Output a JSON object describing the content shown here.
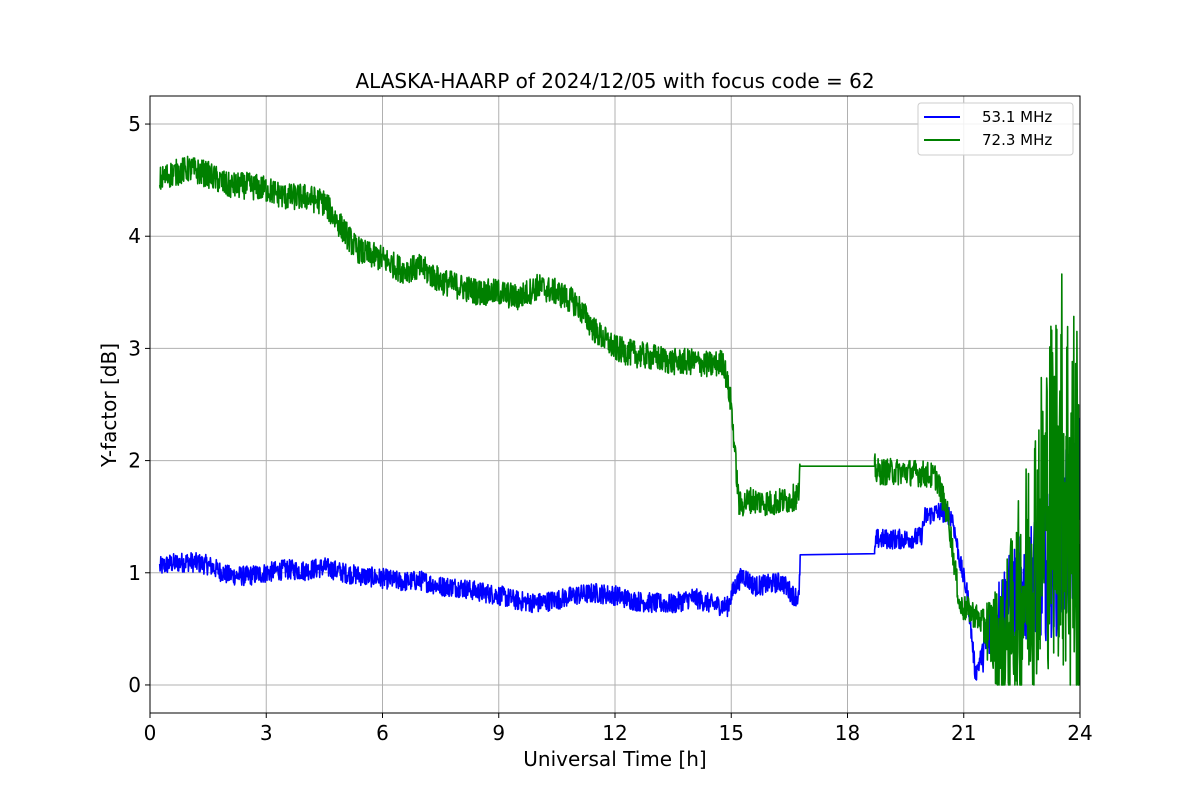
{
  "chart_data": {
    "type": "line",
    "title": "ALASKA-HAARP of 2024/12/05 with focus code = 62",
    "xlabel": "Universal Time [h]",
    "ylabel": "Y-factor [dB]",
    "xlim": [
      0,
      24
    ],
    "ylim": [
      -0.25,
      5.25
    ],
    "xticks": [
      0,
      3,
      6,
      9,
      12,
      15,
      18,
      21,
      24
    ],
    "yticks": [
      0,
      1,
      2,
      3,
      4,
      5
    ],
    "grid": true,
    "legend_position": "top-right",
    "series": [
      {
        "name": "53.1 MHz",
        "color": "#0000ff",
        "points": [
          [
            0.25,
            1.05
          ],
          [
            0.5,
            1.08
          ],
          [
            1.0,
            1.1
          ],
          [
            1.5,
            1.07
          ],
          [
            2.0,
            0.98
          ],
          [
            2.5,
            0.97
          ],
          [
            3.0,
            1.0
          ],
          [
            3.5,
            1.03
          ],
          [
            4.0,
            1.02
          ],
          [
            4.5,
            1.05
          ],
          [
            5.0,
            1.0
          ],
          [
            5.5,
            0.97
          ],
          [
            6.0,
            0.95
          ],
          [
            6.5,
            0.92
          ],
          [
            7.0,
            0.93
          ],
          [
            7.5,
            0.88
          ],
          [
            8.0,
            0.87
          ],
          [
            8.5,
            0.83
          ],
          [
            9.0,
            0.8
          ],
          [
            9.5,
            0.75
          ],
          [
            10.0,
            0.73
          ],
          [
            10.5,
            0.76
          ],
          [
            11.0,
            0.8
          ],
          [
            11.5,
            0.82
          ],
          [
            12.0,
            0.8
          ],
          [
            12.5,
            0.75
          ],
          [
            13.0,
            0.73
          ],
          [
            13.5,
            0.72
          ],
          [
            14.0,
            0.78
          ],
          [
            14.5,
            0.72
          ],
          [
            14.9,
            0.7
          ],
          [
            15.1,
            0.88
          ],
          [
            15.3,
            0.98
          ],
          [
            15.6,
            0.88
          ],
          [
            16.0,
            0.9
          ],
          [
            16.3,
            0.92
          ],
          [
            16.6,
            0.8
          ],
          [
            16.75,
            0.78
          ],
          [
            16.78,
            1.16
          ],
          [
            18.7,
            1.17
          ],
          [
            18.75,
            1.3
          ],
          [
            19.5,
            1.3
          ],
          [
            19.9,
            1.32
          ],
          [
            20.0,
            1.5
          ],
          [
            20.4,
            1.55
          ],
          [
            20.7,
            1.5
          ],
          [
            20.9,
            1.1
          ],
          [
            21.1,
            0.8
          ],
          [
            21.3,
            0.1
          ],
          [
            21.6,
            0.4
          ],
          [
            22.0,
            0.7
          ],
          [
            22.5,
            0.85
          ],
          [
            23.0,
            1.0
          ],
          [
            23.5,
            1.2
          ],
          [
            24.0,
            1.6
          ]
        ],
        "noise": 0.09
      },
      {
        "name": "72.3 MHz",
        "color": "#008000",
        "points": [
          [
            0.25,
            4.5
          ],
          [
            0.5,
            4.55
          ],
          [
            1.0,
            4.6
          ],
          [
            1.5,
            4.55
          ],
          [
            2.0,
            4.45
          ],
          [
            2.5,
            4.45
          ],
          [
            3.0,
            4.42
          ],
          [
            3.5,
            4.35
          ],
          [
            4.0,
            4.35
          ],
          [
            4.5,
            4.3
          ],
          [
            5.0,
            4.05
          ],
          [
            5.3,
            3.9
          ],
          [
            5.5,
            3.85
          ],
          [
            6.0,
            3.8
          ],
          [
            6.5,
            3.7
          ],
          [
            7.0,
            3.72
          ],
          [
            7.5,
            3.6
          ],
          [
            8.0,
            3.55
          ],
          [
            8.5,
            3.5
          ],
          [
            9.0,
            3.5
          ],
          [
            9.5,
            3.45
          ],
          [
            10.0,
            3.55
          ],
          [
            10.5,
            3.5
          ],
          [
            11.0,
            3.4
          ],
          [
            11.5,
            3.15
          ],
          [
            12.0,
            3.0
          ],
          [
            12.5,
            2.95
          ],
          [
            13.0,
            2.92
          ],
          [
            13.5,
            2.88
          ],
          [
            14.0,
            2.88
          ],
          [
            14.5,
            2.85
          ],
          [
            14.8,
            2.88
          ],
          [
            15.0,
            2.5
          ],
          [
            15.2,
            1.6
          ],
          [
            15.5,
            1.65
          ],
          [
            16.0,
            1.62
          ],
          [
            16.5,
            1.65
          ],
          [
            16.75,
            1.7
          ],
          [
            16.78,
            1.95
          ],
          [
            18.7,
            1.95
          ],
          [
            18.75,
            1.9
          ],
          [
            19.5,
            1.9
          ],
          [
            20.0,
            1.88
          ],
          [
            20.3,
            1.85
          ],
          [
            20.6,
            1.5
          ],
          [
            20.9,
            0.7
          ],
          [
            21.2,
            0.65
          ],
          [
            21.5,
            0.55
          ],
          [
            22.0,
            0.35
          ],
          [
            22.5,
            0.8
          ],
          [
            23.0,
            1.5
          ],
          [
            23.5,
            2.0
          ],
          [
            24.0,
            1.3
          ]
        ],
        "noise": 0.12
      }
    ]
  }
}
